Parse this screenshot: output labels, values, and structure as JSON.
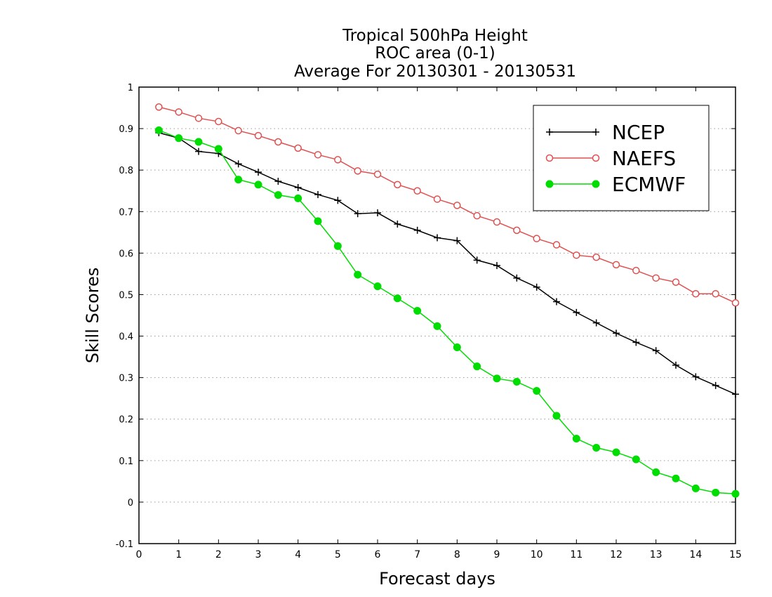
{
  "chart_data": {
    "type": "line",
    "title": [
      "Tropical 500hPa Height",
      "ROC area (0-1)",
      "Average For 20130301 - 20130531"
    ],
    "xlabel": "Forecast days",
    "ylabel": "Skill Scores",
    "xlim": [
      0,
      15
    ],
    "ylim": [
      -0.1,
      1
    ],
    "xticks": [
      "0",
      "1",
      "2",
      "3",
      "4",
      "5",
      "6",
      "7",
      "8",
      "9",
      "10",
      "11",
      "12",
      "13",
      "14",
      "15"
    ],
    "yticks": [
      "-0.1",
      "0",
      "0.1",
      "0.2",
      "0.3",
      "0.4",
      "0.5",
      "0.6",
      "0.7",
      "0.8",
      "0.9",
      "1"
    ],
    "grid": "horizontal dotted",
    "legend_position": "top-right",
    "x": [
      0.5,
      1,
      1.5,
      2,
      2.5,
      3,
      3.5,
      4,
      4.5,
      5,
      5.5,
      6,
      6.5,
      7,
      7.5,
      8,
      8.5,
      9,
      9.5,
      10,
      10.5,
      11,
      11.5,
      12,
      12.5,
      13,
      13.5,
      14,
      14.5,
      15
    ],
    "series": [
      {
        "name": "NCEP",
        "color": "#000000",
        "marker": "plus",
        "values": [
          0.89,
          0.877,
          0.845,
          0.84,
          0.815,
          0.795,
          0.773,
          0.758,
          0.741,
          0.727,
          0.695,
          0.697,
          0.67,
          0.655,
          0.637,
          0.63,
          0.583,
          0.57,
          0.54,
          0.518,
          0.483,
          0.457,
          0.432,
          0.407,
          0.385,
          0.365,
          0.33,
          0.302,
          0.281,
          0.26
        ]
      },
      {
        "name": "NAEFS",
        "color": "#e05050",
        "marker": "open-circle",
        "values": [
          0.952,
          0.94,
          0.925,
          0.917,
          0.895,
          0.883,
          0.868,
          0.853,
          0.837,
          0.825,
          0.798,
          0.79,
          0.765,
          0.75,
          0.73,
          0.715,
          0.69,
          0.675,
          0.655,
          0.635,
          0.62,
          0.595,
          0.59,
          0.572,
          0.558,
          0.54,
          0.53,
          0.502,
          0.502,
          0.48
        ]
      },
      {
        "name": "ECMWF",
        "color": "#00dd00",
        "marker": "filled-circle",
        "values": [
          0.896,
          0.877,
          0.868,
          0.851,
          0.777,
          0.765,
          0.74,
          0.732,
          0.677,
          0.617,
          0.548,
          0.52,
          0.491,
          0.461,
          0.424,
          0.373,
          0.327,
          0.298,
          0.29,
          0.268,
          0.208,
          0.153,
          0.131,
          0.12,
          0.103,
          0.072,
          0.057,
          0.033,
          0.023,
          0.02
        ]
      }
    ]
  }
}
